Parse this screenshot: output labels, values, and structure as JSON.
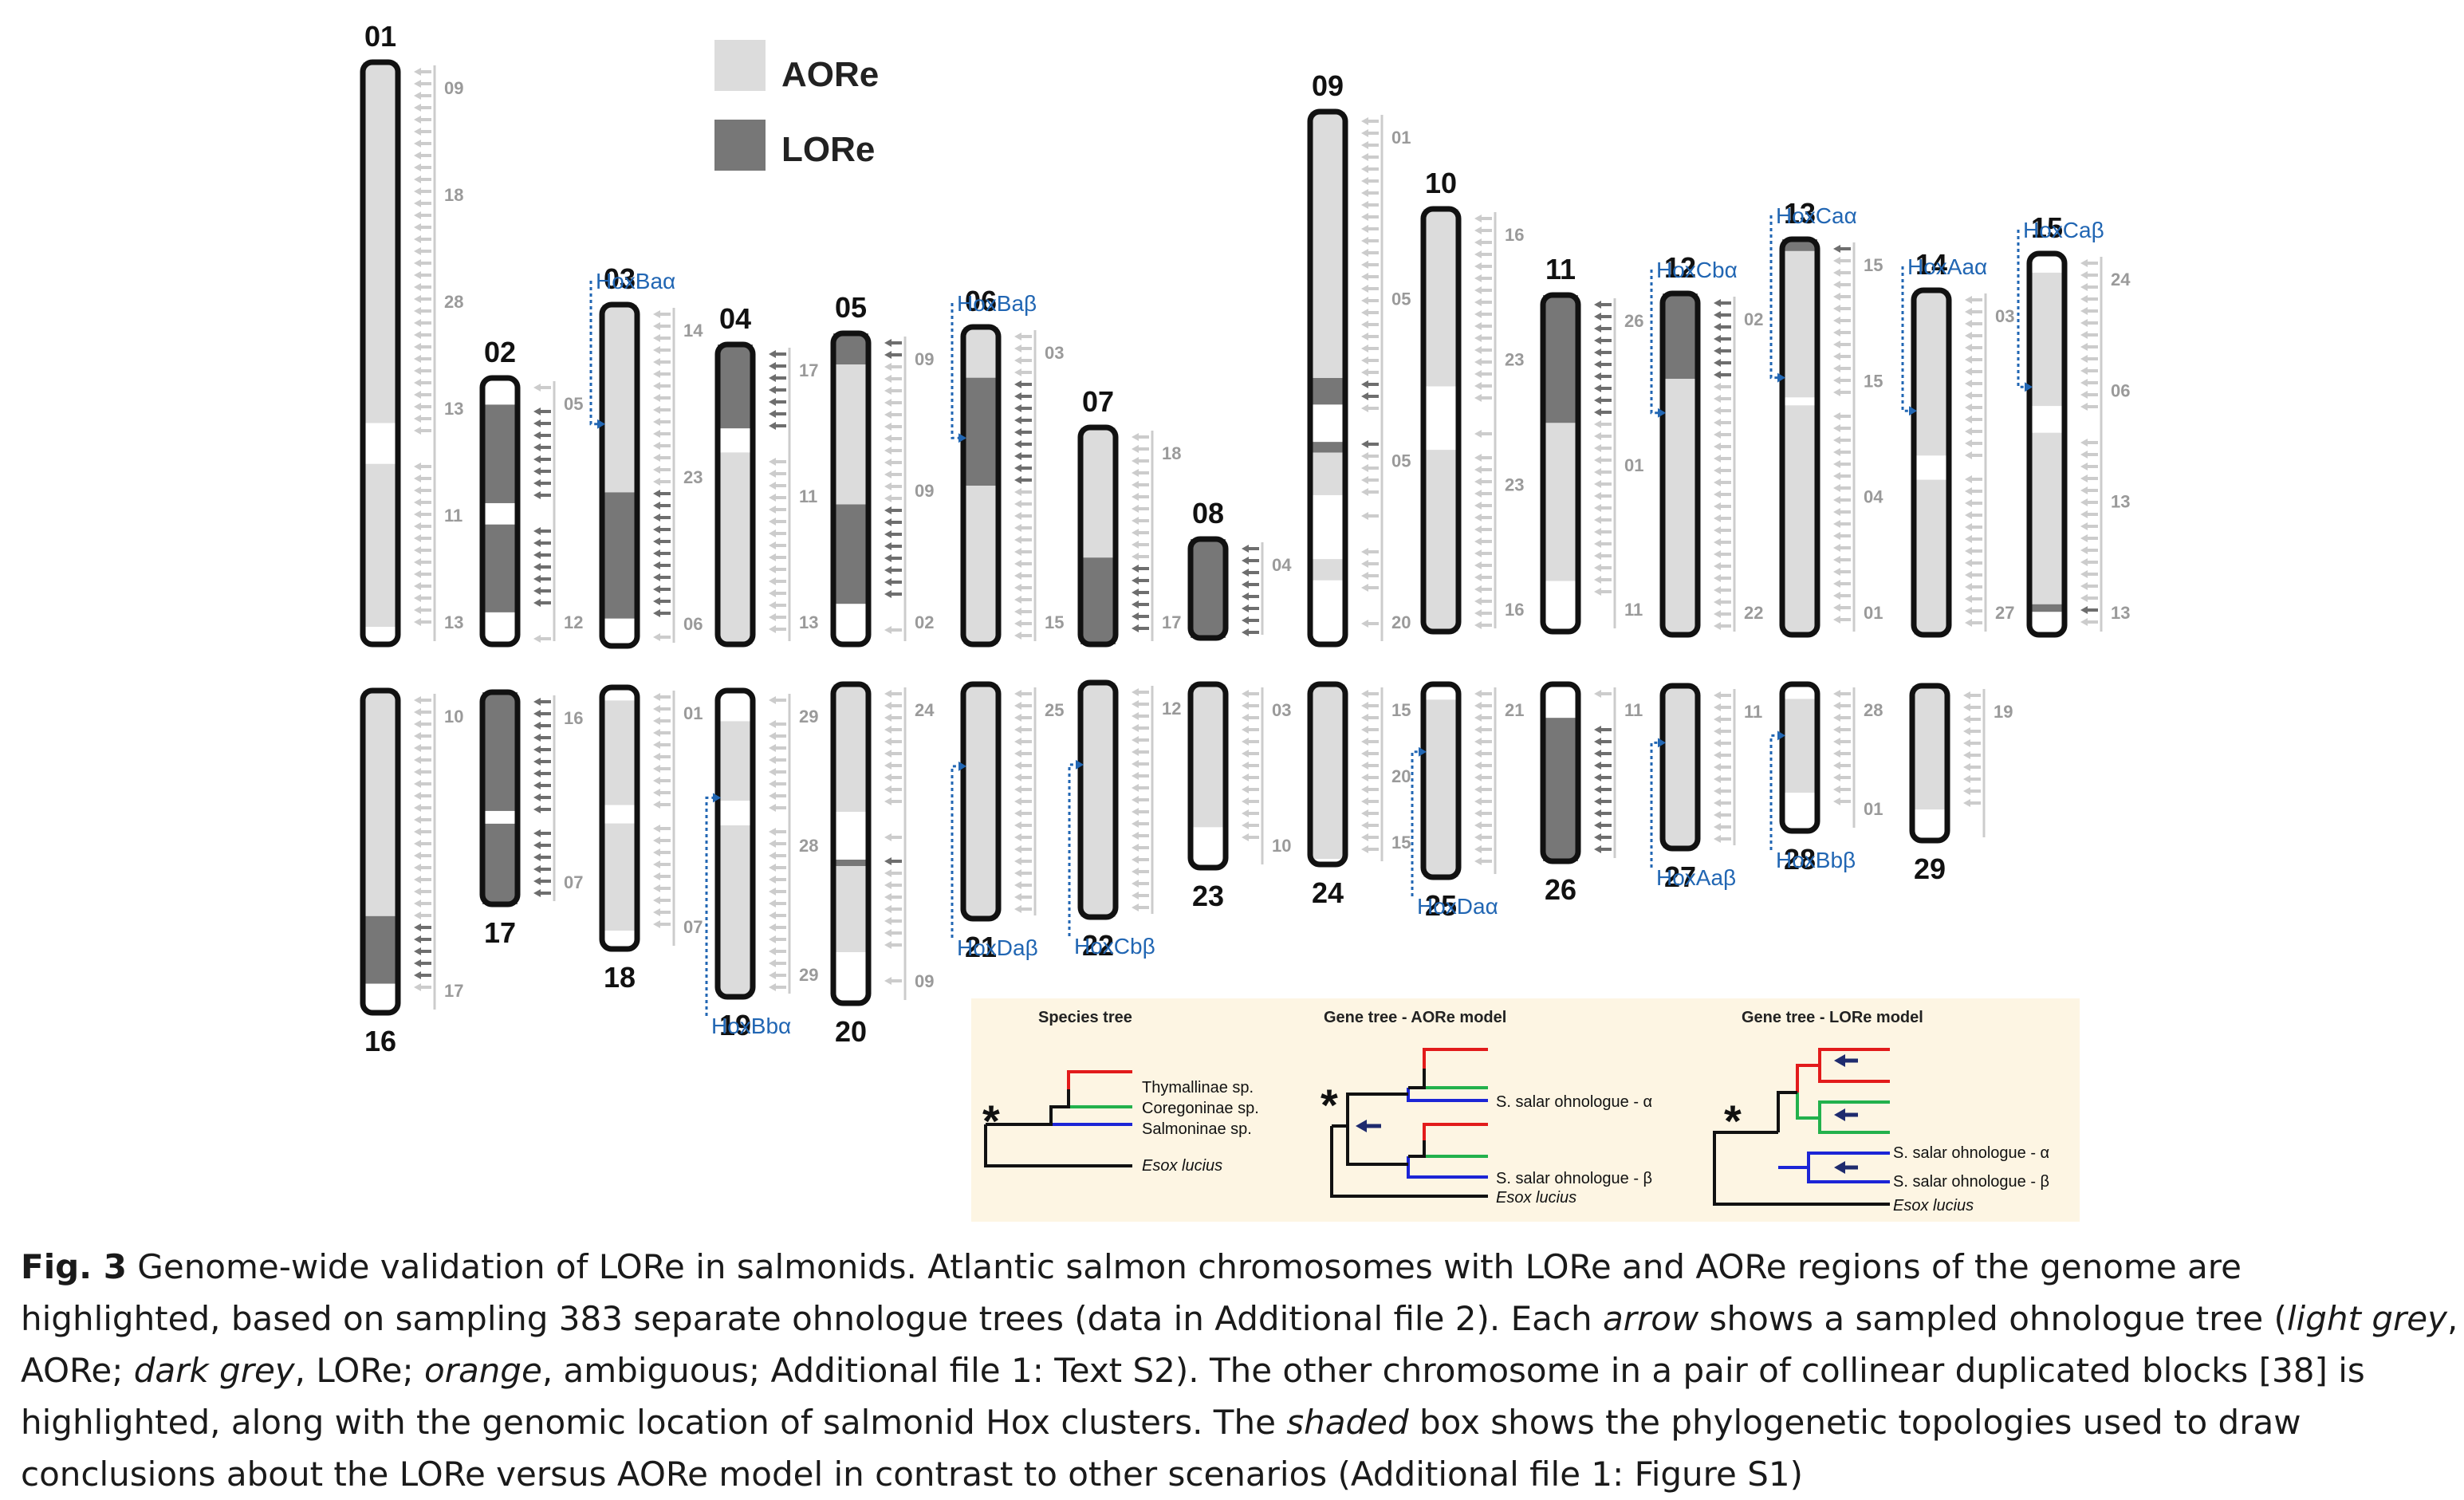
{
  "legend": {
    "aore_label": "AORe",
    "lore_label": "LORe",
    "aore_color": "#dcdcdc",
    "lore_color": "#777777"
  },
  "colors": {
    "hox_blue": "#2166b3",
    "arrow_light": "#cccccc",
    "arrow_dark": "#6e6e6e",
    "arrow_orange": "#f3c6a6",
    "panel_bg": "#fdf5e3",
    "tree_red": "#e21b1b",
    "tree_green": "#22b14c",
    "tree_blue": "#1c25d6",
    "tree_navy": "#1f2b6e"
  },
  "chromosomes": {
    "top": [
      {
        "id": "01",
        "segments": [
          [
            "L",
            0,
            0.62
          ],
          [
            "W",
            0.62,
            0.69
          ],
          [
            "L",
            0.69,
            0.97
          ],
          [
            "W",
            0.97,
            1.0
          ]
        ],
        "refs": [
          "09",
          "18",
          "28",
          "13",
          "11",
          "13"
        ]
      },
      {
        "id": "02",
        "segments": [
          [
            "W",
            0,
            0.1
          ],
          [
            "D",
            0.1,
            0.47
          ],
          [
            "W",
            0.47,
            0.55
          ],
          [
            "D",
            0.55,
            0.88
          ],
          [
            "W",
            0.88,
            1.0
          ]
        ],
        "refs": [
          "05",
          "12"
        ]
      },
      {
        "id": "03",
        "hox": "HoxBaα",
        "segments": [
          [
            "L",
            0,
            0.55
          ],
          [
            "D",
            0.55,
            0.92
          ],
          [
            "W",
            0.92,
            1.0
          ]
        ],
        "refs": [
          "14",
          "23",
          "06"
        ]
      },
      {
        "id": "04",
        "segments": [
          [
            "D",
            0,
            0.28
          ],
          [
            "W",
            0.28,
            0.36
          ],
          [
            "L",
            0.36,
            1.0
          ]
        ],
        "refs": [
          "17",
          "11",
          "13"
        ]
      },
      {
        "id": "05",
        "segments": [
          [
            "D",
            0,
            0.1
          ],
          [
            "L",
            0.1,
            0.55
          ],
          [
            "D",
            0.55,
            0.87
          ],
          [
            "W",
            0.87,
            1.0
          ]
        ],
        "refs": [
          "09",
          "09",
          "02"
        ]
      },
      {
        "id": "06",
        "hox": "HoxBaβ",
        "segments": [
          [
            "L",
            0,
            0.16
          ],
          [
            "D",
            0.16,
            0.5
          ],
          [
            "L",
            0.5,
            1.0
          ]
        ],
        "refs": [
          "03",
          "15"
        ]
      },
      {
        "id": "07",
        "segments": [
          [
            "L",
            0,
            0.6
          ],
          [
            "D",
            0.6,
            1.0
          ]
        ],
        "refs": [
          "18",
          "17"
        ]
      },
      {
        "id": "08",
        "segments": [
          [
            "D",
            0,
            1.0
          ]
        ],
        "refs": [
          "04"
        ]
      },
      {
        "id": "09",
        "segments": [
          [
            "L",
            0,
            0.5
          ],
          [
            "D",
            0.5,
            0.55
          ],
          [
            "W",
            0.55,
            0.62
          ],
          [
            "D",
            0.62,
            0.64
          ],
          [
            "L",
            0.64,
            0.72
          ],
          [
            "W",
            0.72,
            0.84
          ],
          [
            "L",
            0.84,
            0.88
          ],
          [
            "W",
            0.88,
            1.0
          ]
        ],
        "refs": [
          "01",
          "05",
          "05",
          "20"
        ]
      },
      {
        "id": "10",
        "segments": [
          [
            "L",
            0,
            0.42
          ],
          [
            "W",
            0.42,
            0.57
          ],
          [
            "L",
            0.57,
            1.0
          ]
        ],
        "refs": [
          "16",
          "23",
          "23",
          "16"
        ]
      },
      {
        "id": "11",
        "segments": [
          [
            "D",
            0,
            0.38
          ],
          [
            "L",
            0.38,
            0.85
          ],
          [
            "W",
            0.85,
            1.0
          ]
        ],
        "refs": [
          "26",
          "01",
          "11"
        ]
      },
      {
        "id": "12",
        "hox": "HoxCbα",
        "segments": [
          [
            "D",
            0,
            0.25
          ],
          [
            "L",
            0.25,
            1.0
          ]
        ],
        "refs": [
          "02",
          "22"
        ]
      },
      {
        "id": "13",
        "hox": "HoxCaα",
        "segments": [
          [
            "D",
            0,
            0.03
          ],
          [
            "L",
            0.03,
            0.4
          ],
          [
            "W",
            0.4,
            0.42
          ],
          [
            "L",
            0.42,
            1.0
          ]
        ],
        "refs": [
          "15",
          "15",
          "04",
          "01"
        ]
      },
      {
        "id": "14",
        "hox": "HoxAaα",
        "segments": [
          [
            "L",
            0,
            0.48
          ],
          [
            "W",
            0.48,
            0.55
          ],
          [
            "L",
            0.55,
            1.0
          ]
        ],
        "refs": [
          "03",
          "27"
        ]
      },
      {
        "id": "15",
        "hox": "HoxCaβ",
        "segments": [
          [
            "W",
            0,
            0.05
          ],
          [
            "L",
            0.05,
            0.4
          ],
          [
            "W",
            0.4,
            0.47
          ],
          [
            "L",
            0.47,
            0.92
          ],
          [
            "D",
            0.92,
            0.94
          ],
          [
            "W",
            0.94,
            1.0
          ]
        ],
        "refs": [
          "24",
          "06",
          "13",
          "13"
        ]
      }
    ],
    "bottom": [
      {
        "id": "16",
        "segments": [
          [
            "L",
            0,
            0.7
          ],
          [
            "D",
            0.7,
            0.91
          ],
          [
            "W",
            0.91,
            1.0
          ]
        ],
        "refs": [
          "10",
          "17"
        ]
      },
      {
        "id": "17",
        "segments": [
          [
            "D",
            0,
            0.56
          ],
          [
            "W",
            0.56,
            0.62
          ],
          [
            "D",
            0.62,
            1.0
          ]
        ],
        "refs": [
          "16",
          "07"
        ]
      },
      {
        "id": "18",
        "segments": [
          [
            "W",
            0,
            0.05
          ],
          [
            "L",
            0.05,
            0.45
          ],
          [
            "W",
            0.45,
            0.52
          ],
          [
            "L",
            0.52,
            0.93
          ],
          [
            "W",
            0.93,
            1.0
          ]
        ],
        "refs": [
          "01",
          "07"
        ]
      },
      {
        "id": "19",
        "hox": "HoxBbα",
        "segments": [
          [
            "W",
            0,
            0.1
          ],
          [
            "L",
            0.1,
            0.36
          ],
          [
            "W",
            0.36,
            0.44
          ],
          [
            "L",
            0.44,
            1.0
          ]
        ],
        "refs": [
          "29",
          "28",
          "29"
        ]
      },
      {
        "id": "20",
        "segments": [
          [
            "L",
            0,
            0.4
          ],
          [
            "W",
            0.4,
            0.55
          ],
          [
            "D",
            0.55,
            0.57
          ],
          [
            "L",
            0.57,
            0.84
          ],
          [
            "W",
            0.84,
            1.0
          ]
        ],
        "refs": [
          "24",
          "09"
        ]
      },
      {
        "id": "21",
        "hox": "HoxDaβ",
        "segments": [
          [
            "L",
            0,
            1.0
          ]
        ],
        "refs": [
          "25"
        ]
      },
      {
        "id": "22",
        "hox": "HoxCbβ",
        "segments": [
          [
            "L",
            0,
            1.0
          ]
        ],
        "refs": [
          "12"
        ]
      },
      {
        "id": "23",
        "segments": [
          [
            "L",
            0,
            0.78
          ],
          [
            "W",
            0.78,
            1.0
          ]
        ],
        "refs": [
          "03",
          "10"
        ]
      },
      {
        "id": "24",
        "segments": [
          [
            "L",
            0,
            0.97
          ],
          [
            "W",
            0.97,
            1.0
          ]
        ],
        "refs": [
          "15",
          "20",
          "15"
        ]
      },
      {
        "id": "25",
        "hox": "HoxDaα",
        "segments": [
          [
            "W",
            0,
            0.08
          ],
          [
            "L",
            0.08,
            1.0
          ]
        ],
        "refs": [
          "21"
        ]
      },
      {
        "id": "26",
        "segments": [
          [
            "W",
            0,
            0.19
          ],
          [
            "D",
            0.19,
            1.0
          ]
        ],
        "refs": [
          "11"
        ]
      },
      {
        "id": "27",
        "hox": "HoxAaβ",
        "segments": [
          [
            "L",
            0,
            1.0
          ]
        ],
        "refs": [
          "11"
        ]
      },
      {
        "id": "28",
        "hox": "HoxBbβ",
        "segments": [
          [
            "W",
            0,
            0.1
          ],
          [
            "L",
            0.1,
            0.74
          ],
          [
            "W",
            0.74,
            1.0
          ]
        ],
        "refs": [
          "28",
          "01"
        ]
      },
      {
        "id": "29",
        "segments": [
          [
            "L",
            0,
            0.8
          ],
          [
            "W",
            0.8,
            1.0
          ]
        ],
        "refs": [
          "19"
        ]
      }
    ]
  },
  "tree_panel": {
    "species_tree_title": "Species tree",
    "gene_tree_aore_title": "Gene tree - AORe model",
    "gene_tree_lore_title": "Gene tree - LORe model",
    "star": "*",
    "species": [
      "Thymallinae sp.",
      "Coregoninae sp.",
      "Salmoninae sp.",
      "Esox lucius"
    ],
    "ohnologue_alpha": "S. salar ohnologue - α",
    "ohnologue_beta": "S. salar ohnologue - β",
    "outgroup": "Esox lucius"
  },
  "caption": {
    "fig_label": "Fig. 3",
    "lines": [
      " Genome-wide validation of LORe in salmonids. Atlantic salmon chromosomes with LORe and AORe regions of the genome are",
      "highlighted, based on sampling 383 separate ohnologue trees (data in Additional file 2). Each ",
      "arrow",
      " shows a sampled ohnologue tree (",
      "light grey",
      ",",
      "AORe; ",
      "dark grey",
      ", LORe; ",
      "orange",
      ", ambiguous; Additional file 1: Text S2). The other chromosome in a pair of collinear duplicated blocks [38] is",
      "highlighted, along with the genomic location of salmonid Hox clusters. The ",
      "shaded",
      " box shows the phylogenetic topologies used to draw",
      "conclusions about the LORe versus AORe model in contrast to other scenarios (Additional file 1: Figure S1)"
    ]
  }
}
